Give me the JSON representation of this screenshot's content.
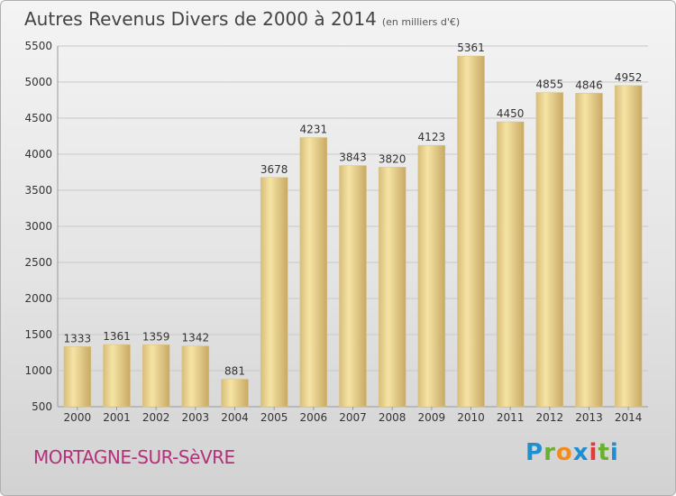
{
  "header": {
    "title": "Autres Revenus Divers de 2000 à 2014",
    "subtitle": "(en milliers d'€)"
  },
  "footer": {
    "town": "MORTAGNE-SUR-SèVRE",
    "logo": "Proxiti"
  },
  "colors": {
    "bar_light": "#f6e4a4",
    "bar_dark": "#c8a964",
    "grid": "#c8c8c8",
    "town": "#b5307a"
  },
  "chart_data": {
    "type": "bar",
    "title": "Autres Revenus Divers de 2000 à 2014",
    "subtitle": "(en milliers d'€)",
    "categories": [
      "2000",
      "2001",
      "2002",
      "2003",
      "2004",
      "2005",
      "2006",
      "2007",
      "2008",
      "2009",
      "2010",
      "2011",
      "2012",
      "2013",
      "2014"
    ],
    "values": [
      1333,
      1361,
      1359,
      1342,
      881,
      3678,
      4231,
      3843,
      3820,
      4123,
      5361,
      4450,
      4855,
      4846,
      4952
    ],
    "ylim": [
      500,
      5500
    ],
    "yticks": [
      500,
      1000,
      1500,
      2000,
      2500,
      3000,
      3500,
      4000,
      4500,
      5000,
      5500
    ],
    "grid": true,
    "data_labels": true
  }
}
